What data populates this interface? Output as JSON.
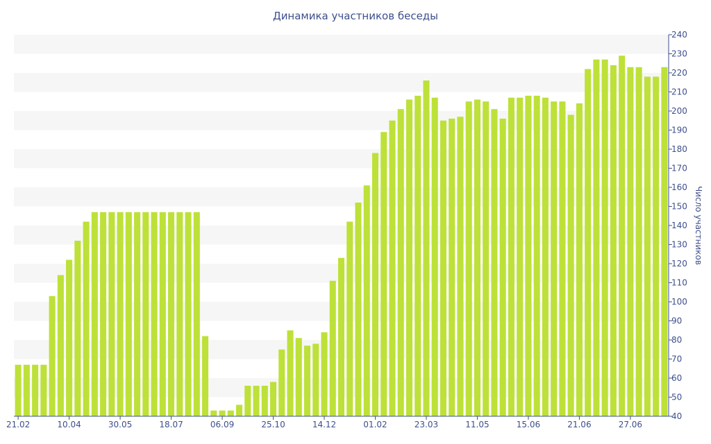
{
  "chart_data": {
    "type": "bar",
    "title": "Динамика участников беседы",
    "ylabel": "Число участников",
    "xlabel": "",
    "ylim": [
      40,
      240
    ],
    "y_ticks": [
      40,
      50,
      60,
      70,
      80,
      90,
      100,
      110,
      120,
      130,
      140,
      150,
      160,
      170,
      180,
      190,
      200,
      210,
      220,
      230,
      240
    ],
    "y_axis_side": "right",
    "alternating_bands": true,
    "bar_color": "#bde138",
    "text_color": "#3d4f8c",
    "band_color": "#f6f6f6",
    "x_tick_labels": [
      {
        "index": 0,
        "label": "21.02"
      },
      {
        "index": 6,
        "label": "10.04"
      },
      {
        "index": 12,
        "label": "30.05"
      },
      {
        "index": 18,
        "label": "18.07"
      },
      {
        "index": 24,
        "label": "06.09"
      },
      {
        "index": 30,
        "label": "25.10"
      },
      {
        "index": 36,
        "label": "14.12"
      },
      {
        "index": 42,
        "label": "01.02"
      },
      {
        "index": 48,
        "label": "23.03"
      },
      {
        "index": 54,
        "label": "11.05"
      },
      {
        "index": 60,
        "label": "15.06"
      },
      {
        "index": 66,
        "label": "21.06"
      },
      {
        "index": 72,
        "label": "27.06"
      }
    ],
    "values": [
      67,
      67,
      67,
      67,
      103,
      114,
      122,
      132,
      142,
      147,
      147,
      147,
      147,
      147,
      147,
      147,
      147,
      147,
      147,
      147,
      147,
      147,
      82,
      43,
      43,
      43,
      46,
      56,
      56,
      56,
      58,
      75,
      85,
      81,
      77,
      78,
      84,
      111,
      123,
      142,
      152,
      161,
      178,
      189,
      195,
      201,
      206,
      208,
      216,
      207,
      195,
      196,
      197,
      205,
      206,
      205,
      201,
      196,
      207,
      207,
      208,
      208,
      207,
      205,
      205,
      198,
      204,
      222,
      227,
      227,
      224,
      229,
      223,
      223,
      218,
      218,
      223
    ]
  }
}
